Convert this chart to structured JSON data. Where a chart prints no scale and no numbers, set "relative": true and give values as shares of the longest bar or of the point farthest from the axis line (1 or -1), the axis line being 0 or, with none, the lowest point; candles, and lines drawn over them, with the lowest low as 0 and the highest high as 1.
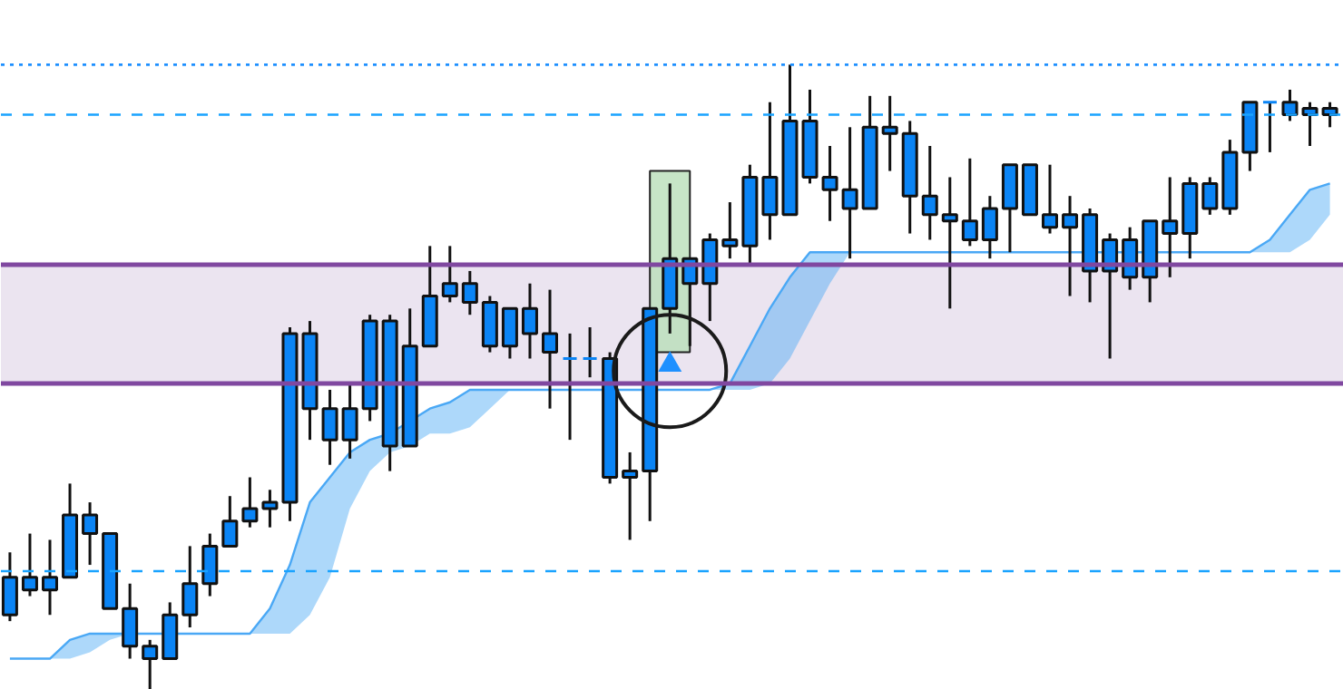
{
  "chart_data": {
    "type": "candlestick",
    "relative": true,
    "color": "#0a84f5",
    "categories": [
      null,
      null,
      null,
      null,
      null,
      null,
      null,
      null,
      null,
      null,
      null,
      null,
      null,
      null,
      null,
      null,
      null,
      null,
      null,
      null,
      null,
      null,
      null,
      null,
      null,
      null,
      null,
      null,
      null,
      null,
      null,
      null,
      null,
      null,
      null,
      null,
      null,
      null,
      null,
      null,
      null,
      null,
      null,
      null,
      null,
      null,
      null,
      null,
      null,
      null,
      null,
      null,
      null,
      null,
      null,
      null,
      null,
      null,
      null,
      null,
      null,
      null,
      null,
      null,
      null,
      null,
      null
    ],
    "ohlc": [
      [
        0.12,
        0.22,
        0.11,
        0.18
      ],
      [
        0.16,
        0.25,
        0.15,
        0.18
      ],
      [
        0.16,
        0.24,
        0.12,
        0.18
      ],
      [
        0.18,
        0.33,
        0.18,
        0.28
      ],
      [
        0.25,
        0.3,
        0.2,
        0.28
      ],
      [
        0.13,
        0.25,
        0.13,
        0.25
      ],
      [
        0.07,
        0.17,
        0.05,
        0.13
      ],
      [
        0.05,
        0.08,
        0,
        0.07
      ],
      [
        0.05,
        0.14,
        0.05,
        0.12
      ],
      [
        0.12,
        0.23,
        0.1,
        0.17
      ],
      [
        0.17,
        0.25,
        0.15,
        0.23
      ],
      [
        0.23,
        0.31,
        0.23,
        0.27
      ],
      [
        0.27,
        0.34,
        0.26,
        0.29
      ],
      [
        0.29,
        0.32,
        0.26,
        0.3
      ],
      [
        0.3,
        0.58,
        0.27,
        0.57
      ],
      [
        0.45,
        0.59,
        0.4,
        0.57
      ],
      [
        0.4,
        0.48,
        0.36,
        0.45
      ],
      [
        0.4,
        0.49,
        0.37,
        0.45
      ],
      [
        0.45,
        0.6,
        0.43,
        0.59
      ],
      [
        0.39,
        0.6,
        0.35,
        0.59
      ],
      [
        0.39,
        0.61,
        0.39,
        0.55
      ],
      [
        0.55,
        0.71,
        0.55,
        0.63
      ],
      [
        0.63,
        0.71,
        0.62,
        0.65
      ],
      [
        0.62,
        0.67,
        0.6,
        0.65
      ],
      [
        0.55,
        0.63,
        0.54,
        0.62
      ],
      [
        0.55,
        0.61,
        0.53,
        0.61
      ],
      [
        0.57,
        0.65,
        0.53,
        0.61
      ],
      [
        0.54,
        0.64,
        0.45,
        0.57
      ],
      [
        0.53,
        0.57,
        0.4,
        0.53
      ],
      [
        0.53,
        0.58,
        0.5,
        0.53
      ],
      [
        0.34,
        0.54,
        0.33,
        0.53
      ],
      [
        0.34,
        0.38,
        0.24,
        0.35
      ],
      [
        0.35,
        0.61,
        0.27,
        0.61
      ],
      [
        0.61,
        0.81,
        0.57,
        0.69
      ],
      [
        0.65,
        0.69,
        0.55,
        0.69
      ],
      [
        0.65,
        0.73,
        0.59,
        0.72
      ],
      [
        0.71,
        0.78,
        0.69,
        0.72
      ],
      [
        0.71,
        0.84,
        0.68,
        0.82
      ],
      [
        0.76,
        0.94,
        0.72,
        0.82
      ],
      [
        0.76,
        1,
        0.76,
        0.91
      ],
      [
        0.82,
        0.96,
        0.81,
        0.91
      ],
      [
        0.8,
        0.87,
        0.75,
        0.82
      ],
      [
        0.77,
        0.9,
        0.69,
        0.8
      ],
      [
        0.77,
        0.95,
        0.77,
        0.9
      ],
      [
        0.89,
        0.95,
        0.83,
        0.9
      ],
      [
        0.79,
        0.91,
        0.73,
        0.89
      ],
      [
        0.76,
        0.87,
        0.72,
        0.79
      ],
      [
        0.75,
        0.82,
        0.61,
        0.76
      ],
      [
        0.72,
        0.85,
        0.71,
        0.75
      ],
      [
        0.72,
        0.79,
        0.69,
        0.77
      ],
      [
        0.77,
        0.84,
        0.7,
        0.84
      ],
      [
        0.76,
        0.84,
        0.76,
        0.84
      ],
      [
        0.74,
        0.84,
        0.73,
        0.76
      ],
      [
        0.74,
        0.79,
        0.63,
        0.76
      ],
      [
        0.67,
        0.77,
        0.62,
        0.76
      ],
      [
        0.67,
        0.73,
        0.53,
        0.72
      ],
      [
        0.66,
        0.74,
        0.64,
        0.72
      ],
      [
        0.66,
        0.75,
        0.62,
        0.75
      ],
      [
        0.73,
        0.82,
        0.66,
        0.75
      ],
      [
        0.73,
        0.82,
        0.69,
        0.81
      ],
      [
        0.77,
        0.82,
        0.76,
        0.81
      ],
      [
        0.77,
        0.88,
        0.76,
        0.86
      ],
      [
        0.86,
        0.94,
        0.83,
        0.94
      ],
      [
        0.94,
        0.94,
        0.86,
        0.94
      ],
      [
        0.92,
        0.96,
        0.91,
        0.94
      ],
      [
        0.92,
        0.94,
        0.87,
        0.93
      ],
      [
        0.92,
        0.94,
        0.9,
        0.93
      ]
    ],
    "series": [
      {
        "type": "line",
        "color": "#4aa8f5",
        "lower": [
          0.05,
          0.05,
          0.05,
          0.05,
          0.06,
          0.08,
          0.09,
          0.09,
          0.09,
          0.09,
          0.09,
          0.09,
          0.09,
          0.09,
          0.09,
          0.12,
          0.18,
          0.29,
          0.35,
          0.38,
          0.39,
          0.41,
          0.41,
          0.42,
          0.45,
          0.48,
          0.48,
          0.48,
          0.48,
          0.48,
          0.48,
          0.48,
          0.48,
          0.48,
          0.48,
          0.48,
          0.48,
          0.48,
          0.49,
          0.53,
          0.59,
          0.65,
          0.7,
          0.7,
          0.7,
          0.7,
          0.7,
          0.7,
          0.7,
          0.7,
          0.7,
          0.7,
          0.7,
          0.7,
          0.7,
          0.7,
          0.7,
          0.7,
          0.7,
          0.7,
          0.7,
          0.7,
          0.7,
          0.7,
          0.7,
          0.72,
          0.76
        ],
        "values": [
          0.05,
          0.05,
          0.05,
          0.08,
          0.09,
          0.09,
          0.09,
          0.09,
          0.09,
          0.09,
          0.09,
          0.09,
          0.09,
          0.13,
          0.2,
          0.3,
          0.34,
          0.38,
          0.4,
          0.41,
          0.43,
          0.45,
          0.46,
          0.48,
          0.48,
          0.48,
          0.48,
          0.48,
          0.48,
          0.48,
          0.48,
          0.48,
          0.48,
          0.48,
          0.48,
          0.48,
          0.49,
          0.55,
          0.61,
          0.66,
          0.7,
          0.7,
          0.7,
          0.7,
          0.7,
          0.7,
          0.7,
          0.7,
          0.7,
          0.7,
          0.7,
          0.7,
          0.7,
          0.7,
          0.7,
          0.7,
          0.7,
          0.7,
          0.7,
          0.7,
          0.7,
          0.7,
          0.7,
          0.72,
          0.76,
          0.8,
          0.81
        ],
        "upper": [
          0.05,
          0.05,
          0.05,
          0.08,
          0.09,
          0.09,
          0.09,
          0.09,
          0.09,
          0.09,
          0.09,
          0.09,
          0.09,
          0.13,
          0.2,
          0.3,
          0.34,
          0.38,
          0.4,
          0.41,
          0.43,
          0.45,
          0.46,
          0.48,
          0.48,
          0.48,
          0.48,
          0.48,
          0.48,
          0.48,
          0.48,
          0.48,
          0.48,
          0.48,
          0.48,
          0.48,
          0.49,
          0.55,
          0.61,
          0.66,
          0.7,
          0.7,
          0.7,
          0.7,
          0.7,
          0.7,
          0.7,
          0.7,
          0.7,
          0.7,
          0.7,
          0.7,
          0.7,
          0.7,
          0.7,
          0.7,
          0.7,
          0.7,
          0.7,
          0.7,
          0.7,
          0.7,
          0.7,
          0.72,
          0.76,
          0.8,
          0.81
        ]
      },
      {
        "type": "bar",
        "color": "#b9dfb9",
        "base": [
          null,
          null,
          null,
          null,
          null,
          null,
          null,
          null,
          null,
          null,
          null,
          null,
          null,
          null,
          null,
          null,
          null,
          null,
          null,
          null,
          null,
          null,
          null,
          null,
          null,
          null,
          null,
          null,
          null,
          null,
          null,
          null,
          null,
          0.54,
          null,
          null,
          null,
          null,
          null,
          null,
          null,
          null,
          null,
          null,
          null,
          null,
          null,
          null,
          null,
          null,
          null,
          null,
          null,
          null,
          null,
          null,
          null,
          null,
          null,
          null,
          null,
          null,
          null,
          null,
          null,
          null,
          null
        ],
        "values": [
          null,
          null,
          null,
          null,
          null,
          null,
          null,
          null,
          null,
          null,
          null,
          null,
          null,
          null,
          null,
          null,
          null,
          null,
          null,
          null,
          null,
          null,
          null,
          null,
          null,
          null,
          null,
          null,
          null,
          null,
          null,
          null,
          null,
          0.29,
          null,
          null,
          null,
          null,
          null,
          null,
          null,
          null,
          null,
          null,
          null,
          null,
          null,
          null,
          null,
          null,
          null,
          null,
          null,
          null,
          null,
          null,
          null,
          null,
          null,
          null,
          null,
          null,
          null,
          null,
          null,
          null,
          null
        ]
      },
      {
        "type": "scatter",
        "marker": "circle",
        "color": "#1a1a1a",
        "values": [
          null,
          null,
          null,
          null,
          null,
          null,
          null,
          null,
          null,
          null,
          null,
          null,
          null,
          null,
          null,
          null,
          null,
          null,
          null,
          null,
          null,
          null,
          null,
          null,
          null,
          null,
          null,
          null,
          null,
          null,
          null,
          null,
          null,
          0.51,
          null,
          null,
          null,
          null,
          null,
          null,
          null,
          null,
          null,
          null,
          null,
          null,
          null,
          null,
          null,
          null,
          null,
          null,
          null,
          null,
          null,
          null,
          null,
          null,
          null,
          null,
          null,
          null,
          null,
          null,
          null,
          null,
          null
        ]
      },
      {
        "type": "scatter",
        "marker": "triangle",
        "color": "#1e90ff",
        "values": [
          null,
          null,
          null,
          null,
          null,
          null,
          null,
          null,
          null,
          null,
          null,
          null,
          null,
          null,
          null,
          null,
          null,
          null,
          null,
          null,
          null,
          null,
          null,
          null,
          null,
          null,
          null,
          null,
          null,
          null,
          null,
          null,
          null,
          0.52,
          null,
          null,
          null,
          null,
          null,
          null,
          null,
          null,
          null,
          null,
          null,
          null,
          null,
          null,
          null,
          null,
          null,
          null,
          null,
          null,
          null,
          null,
          null,
          null,
          null,
          null,
          null,
          null,
          null,
          null,
          null,
          null,
          null
        ]
      }
    ],
    "bands": [
      {
        "axis": "y",
        "from": 0.49,
        "to": 0.68,
        "color": "#ebe4f0"
      }
    ],
    "ref_lines": [
      {
        "axis": "y",
        "value": 0.49,
        "color": "#8048a0",
        "line_style": "solid"
      },
      {
        "axis": "y",
        "value": 0.68,
        "color": "#8048a0",
        "line_style": "solid"
      },
      {
        "axis": "y",
        "value": 1,
        "color": "#1e90ff",
        "line_style": "dotted"
      },
      {
        "axis": "y",
        "value": 0.92,
        "color": "#1aa3ff",
        "line_style": "dashed"
      },
      {
        "axis": "y",
        "value": 0.19,
        "color": "#1aa3ff",
        "line_style": "dashed"
      }
    ],
    "grid": false,
    "tick_labels": false
  }
}
